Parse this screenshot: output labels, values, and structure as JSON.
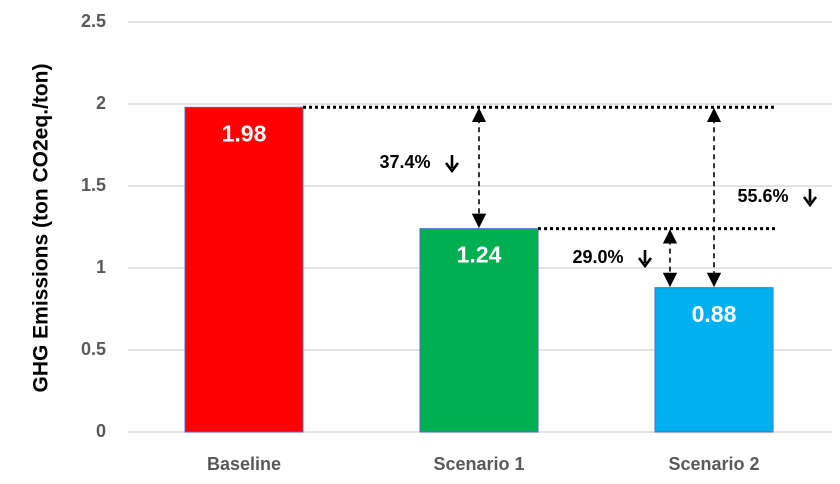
{
  "chart_data": {
    "type": "bar",
    "categories": [
      "Baseline",
      "Scenario 1",
      "Scenario 2"
    ],
    "values": [
      1.98,
      1.24,
      0.88
    ],
    "data_labels": [
      "1.98",
      "1.24",
      "0.88"
    ],
    "colors": [
      "#ff0000",
      "#00b050",
      "#00b0f0"
    ],
    "title": "",
    "xlabel": "",
    "ylabel": "GHG Emissions (ton CO2eq./ton)",
    "ylim": [
      0,
      2.5
    ],
    "yticks": [
      "0",
      "0.5",
      "1",
      "1.5",
      "2",
      "2.5"
    ],
    "grid": true,
    "legend": "none",
    "annotations": [
      {
        "text": "37.4%",
        "from": "Baseline",
        "to": "Scenario 1",
        "direction": "down"
      },
      {
        "text": "29.0%",
        "from": "Scenario 1",
        "to": "Scenario 2",
        "direction": "down"
      },
      {
        "text": "55.6%",
        "from": "Baseline",
        "to": "Scenario 2",
        "direction": "down"
      }
    ]
  }
}
